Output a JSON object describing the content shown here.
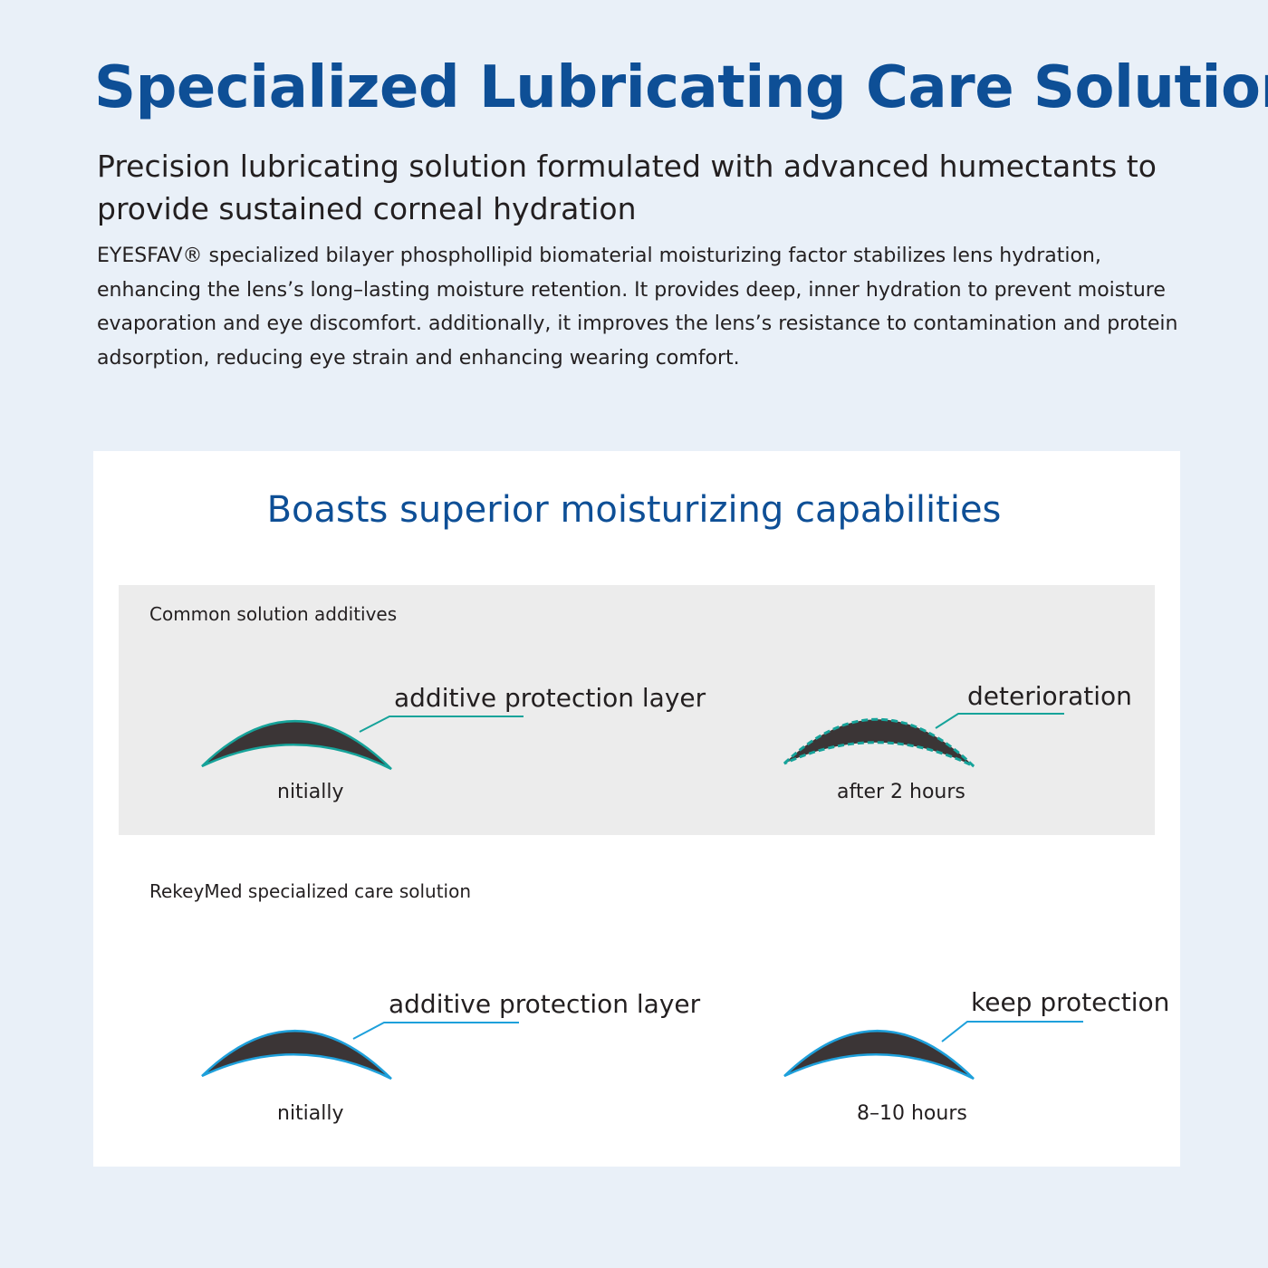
{
  "header": {
    "title": "Specialized Lubricating Care Solution",
    "subtitle": "Precision lubricating solution formulated with advanced humectants to provide sustained corneal hydration",
    "body": "EYESFAV® specialized bilayer phosphollipid biomaterial moisturizing factor stabilizes lens hydration, enhancing the lens’s long–lasting moisture retention. It provides deep, inner hydration to prevent moisture evaporation and eye discomfort. additionally, it improves the lens’s resistance to contamination and protein adsorption, reducing eye strain and enhancing wearing comfort."
  },
  "comparison": {
    "title": "Boasts superior moisturizing capabilities",
    "common": {
      "heading": "Common solution additives",
      "left": {
        "callout": "additive protection layer",
        "caption": "nitially"
      },
      "right": {
        "callout": "deterioration",
        "caption": "after 2 hours"
      }
    },
    "rekeymed": {
      "heading": "RekeyMed specialized care solution",
      "left": {
        "callout": "additive protection layer",
        "caption": "nitially"
      },
      "right": {
        "callout": "keep protection",
        "caption": "8–10 hours"
      }
    }
  },
  "colors": {
    "title": "#0e4f96",
    "lens": "#3b3536",
    "common_layer": "#16a39a",
    "rekeymed_layer": "#1ea0db",
    "panel": "#ececec",
    "background": "#e9f0f8"
  }
}
